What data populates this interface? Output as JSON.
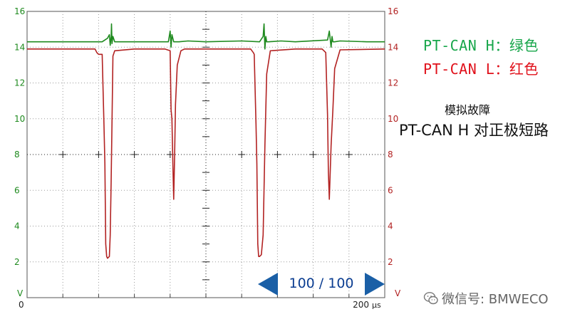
{
  "chart_data": {
    "type": "line",
    "title": "",
    "x_axis": {
      "range": [
        0,
        200
      ],
      "tick_labels": [
        "0",
        "200"
      ],
      "unit": "µs"
    },
    "y_axis_left": {
      "range": [
        0,
        16
      ],
      "tick_labels": [
        "2",
        "4",
        "6",
        "8",
        "10",
        "12",
        "14",
        "16"
      ],
      "unit": "V",
      "color": "#1e8a1e"
    },
    "y_axis_right": {
      "range": [
        0,
        16
      ],
      "tick_labels": [
        "2",
        "4",
        "6",
        "8",
        "10",
        "12",
        "14",
        "16"
      ],
      "unit": "V",
      "color": "#b22222"
    },
    "grid": true,
    "series": [
      {
        "name": "PT-CAN H",
        "color": "#1e8a1e",
        "x": [
          0,
          42,
          45,
          46,
          46.5,
          47,
          47.2,
          47.5,
          48,
          49,
          55,
          62,
          79,
          80,
          80.5,
          81,
          82,
          85,
          90,
          100,
          120,
          130,
          132,
          132.5,
          133,
          133.5,
          134,
          135,
          142,
          150,
          168,
          169,
          170,
          170.5,
          171,
          172,
          175,
          190,
          200
        ],
        "y": [
          14.3,
          14.3,
          14.5,
          14.7,
          14.1,
          14.6,
          15.3,
          14.2,
          14.6,
          14.3,
          14.3,
          14.3,
          14.3,
          14.9,
          14.0,
          14.7,
          14.3,
          14.3,
          14.35,
          14.3,
          14.35,
          14.3,
          14.6,
          15.3,
          13.9,
          14.6,
          14.3,
          14.3,
          14.35,
          14.3,
          14.4,
          14.9,
          14.0,
          14.6,
          14.3,
          14.3,
          14.35,
          14.3,
          14.3
        ]
      },
      {
        "name": "PT-CAN L",
        "color": "#b22222",
        "x": [
          0,
          30,
          38,
          39,
          40,
          42,
          43,
          43.5,
          44,
          44.5,
          45,
          46,
          46.5,
          47,
          47.5,
          48,
          49,
          60,
          77,
          80,
          80.5,
          81,
          81.5,
          82,
          82.5,
          83,
          84,
          86,
          88,
          90,
          100,
          115,
          120,
          125,
          126.5,
          127,
          128,
          128.5,
          129,
          129.5,
          130,
          131,
          132,
          133,
          134,
          136,
          150,
          165,
          166,
          167,
          168,
          168.5,
          169,
          170,
          171,
          172,
          175,
          200
        ],
        "y": [
          13.9,
          13.9,
          13.9,
          13.7,
          13.6,
          13.6,
          9.7,
          7.5,
          3.0,
          2.3,
          2.2,
          2.3,
          3.5,
          6.5,
          9.8,
          13.5,
          13.8,
          13.9,
          13.9,
          13.8,
          10.5,
          10.0,
          7.5,
          5.5,
          8.0,
          10.8,
          13.0,
          13.8,
          13.9,
          13.9,
          13.9,
          13.9,
          13.9,
          13.9,
          13.7,
          13.6,
          9.7,
          7.5,
          3.0,
          2.3,
          2.3,
          2.4,
          3.5,
          8.5,
          12.5,
          13.8,
          13.9,
          13.9,
          13.8,
          13.7,
          10.2,
          7.0,
          5.5,
          8.5,
          10.5,
          12.8,
          13.85,
          13.9
        ]
      }
    ]
  },
  "legend": {
    "h_label": "PT-CAN H：绿色",
    "h_color": "#17a64a",
    "l_label": "PT-CAN L：红色",
    "l_color": "#e0101a"
  },
  "fault": {
    "caption": "模拟故障",
    "description": "PT-CAN H 对正极短路"
  },
  "navigation": {
    "page_label": "100 / 100"
  },
  "watermark": {
    "text": "微信号: BMWECO",
    "icon": "wechat-icon"
  }
}
